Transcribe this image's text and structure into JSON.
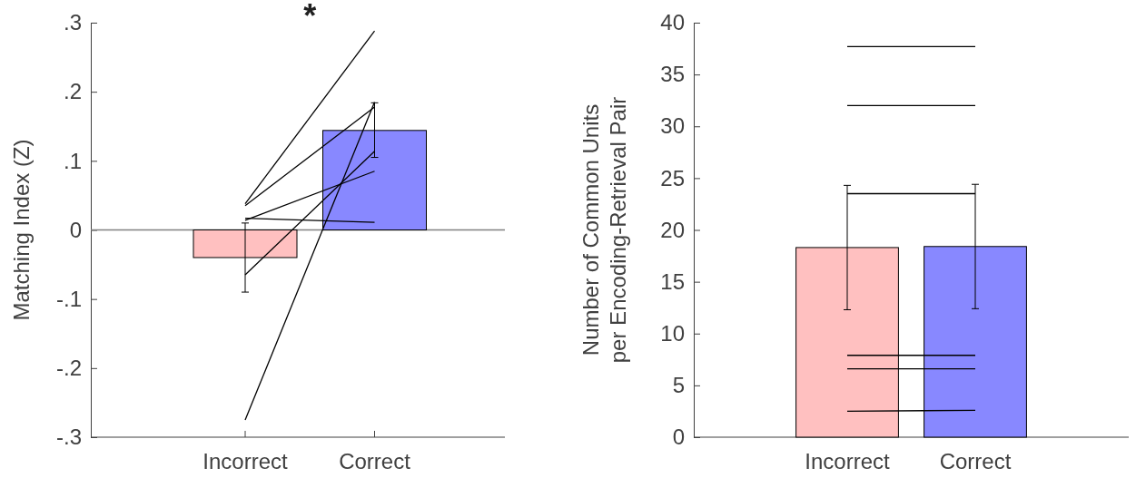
{
  "chart_data": [
    {
      "type": "bar",
      "ylabel": "Matching Index (Z)",
      "categories": [
        "Incorrect",
        "Correct"
      ],
      "ylim": [
        -0.3,
        0.3
      ],
      "yticks": [
        {
          "value": -0.3,
          "label": "-.3"
        },
        {
          "value": -0.2,
          "label": "-.2"
        },
        {
          "value": -0.1,
          "label": "-.1"
        },
        0,
        {
          "value": 0.1,
          "label": ".1"
        },
        {
          "value": 0.2,
          "label": ".2"
        },
        {
          "value": 0.3,
          "label": ".3"
        }
      ],
      "ref_lines": [
        {
          "axis": "y",
          "value": 0,
          "color": "#808080"
        }
      ],
      "annotations": [
        "*"
      ],
      "series": [
        {
          "values": [
            -0.04,
            0.144
          ],
          "colors": [
            "#ffc0c0",
            "#8888ff"
          ],
          "errors": [
            [
              -0.09,
              0.01
            ],
            [
              0.105,
              0.184
            ]
          ]
        },
        {
          "type": "line",
          "color": "#000000",
          "values": [
            0.038,
            0.288
          ]
        },
        {
          "type": "line",
          "color": "#000000",
          "values": [
            0.035,
            0.178
          ]
        },
        {
          "type": "line",
          "color": "#000000",
          "values": [
            0.014,
            0.085
          ]
        },
        {
          "type": "line",
          "color": "#000000",
          "values": [
            0.017,
            0.011
          ]
        },
        {
          "type": "line",
          "color": "#000000",
          "values": [
            -0.065,
            0.114
          ]
        },
        {
          "type": "line",
          "color": "#000000",
          "values": [
            -0.275,
            0.185
          ]
        }
      ]
    },
    {
      "type": "bar",
      "ylabel": "Number of Common Units\nper Encoding-Retrieval Pair",
      "categories": [
        "Incorrect",
        "Correct"
      ],
      "ylim": [
        0,
        40
      ],
      "yticks": [
        0,
        5,
        10,
        15,
        20,
        25,
        30,
        35,
        40
      ],
      "series": [
        {
          "values": [
            18.3,
            18.4
          ],
          "colors": [
            "#ffc0c0",
            "#8888ff"
          ],
          "errors": [
            [
              12.3,
              24.3
            ],
            [
              12.4,
              24.4
            ]
          ]
        },
        {
          "type": "line",
          "color": "#000000",
          "values": [
            37.7,
            37.7
          ]
        },
        {
          "type": "line",
          "color": "#000000",
          "values": [
            32.0,
            32.0
          ]
        },
        {
          "type": "line",
          "color": "#000000",
          "values": [
            23.5,
            23.5
          ]
        },
        {
          "type": "line",
          "color": "#000000",
          "values": [
            7.9,
            7.9
          ]
        },
        {
          "type": "line",
          "color": "#000000",
          "values": [
            6.6,
            6.6
          ]
        },
        {
          "type": "line",
          "color": "#000000",
          "values": [
            2.5,
            2.6
          ]
        }
      ]
    }
  ]
}
